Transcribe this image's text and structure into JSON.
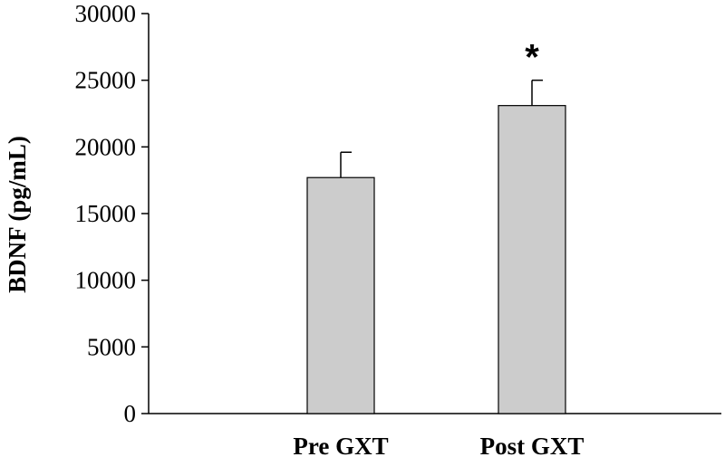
{
  "chart_data": {
    "type": "bar",
    "categories": [
      "Pre GXT",
      "Post GXT"
    ],
    "values": [
      17700,
      23100
    ],
    "error_upper": [
      1900,
      1900
    ],
    "ylabel": "BDNF (pg/mL)",
    "xlabel": "",
    "ylim": [
      0,
      30000
    ],
    "yticks": [
      0,
      5000,
      10000,
      15000,
      20000,
      25000,
      30000
    ],
    "annotations": [
      {
        "category": "Post GXT",
        "text": "*"
      }
    ],
    "grid": false,
    "colors": {
      "bar_fill": "#cccccc",
      "bar_stroke": "#000000"
    }
  }
}
